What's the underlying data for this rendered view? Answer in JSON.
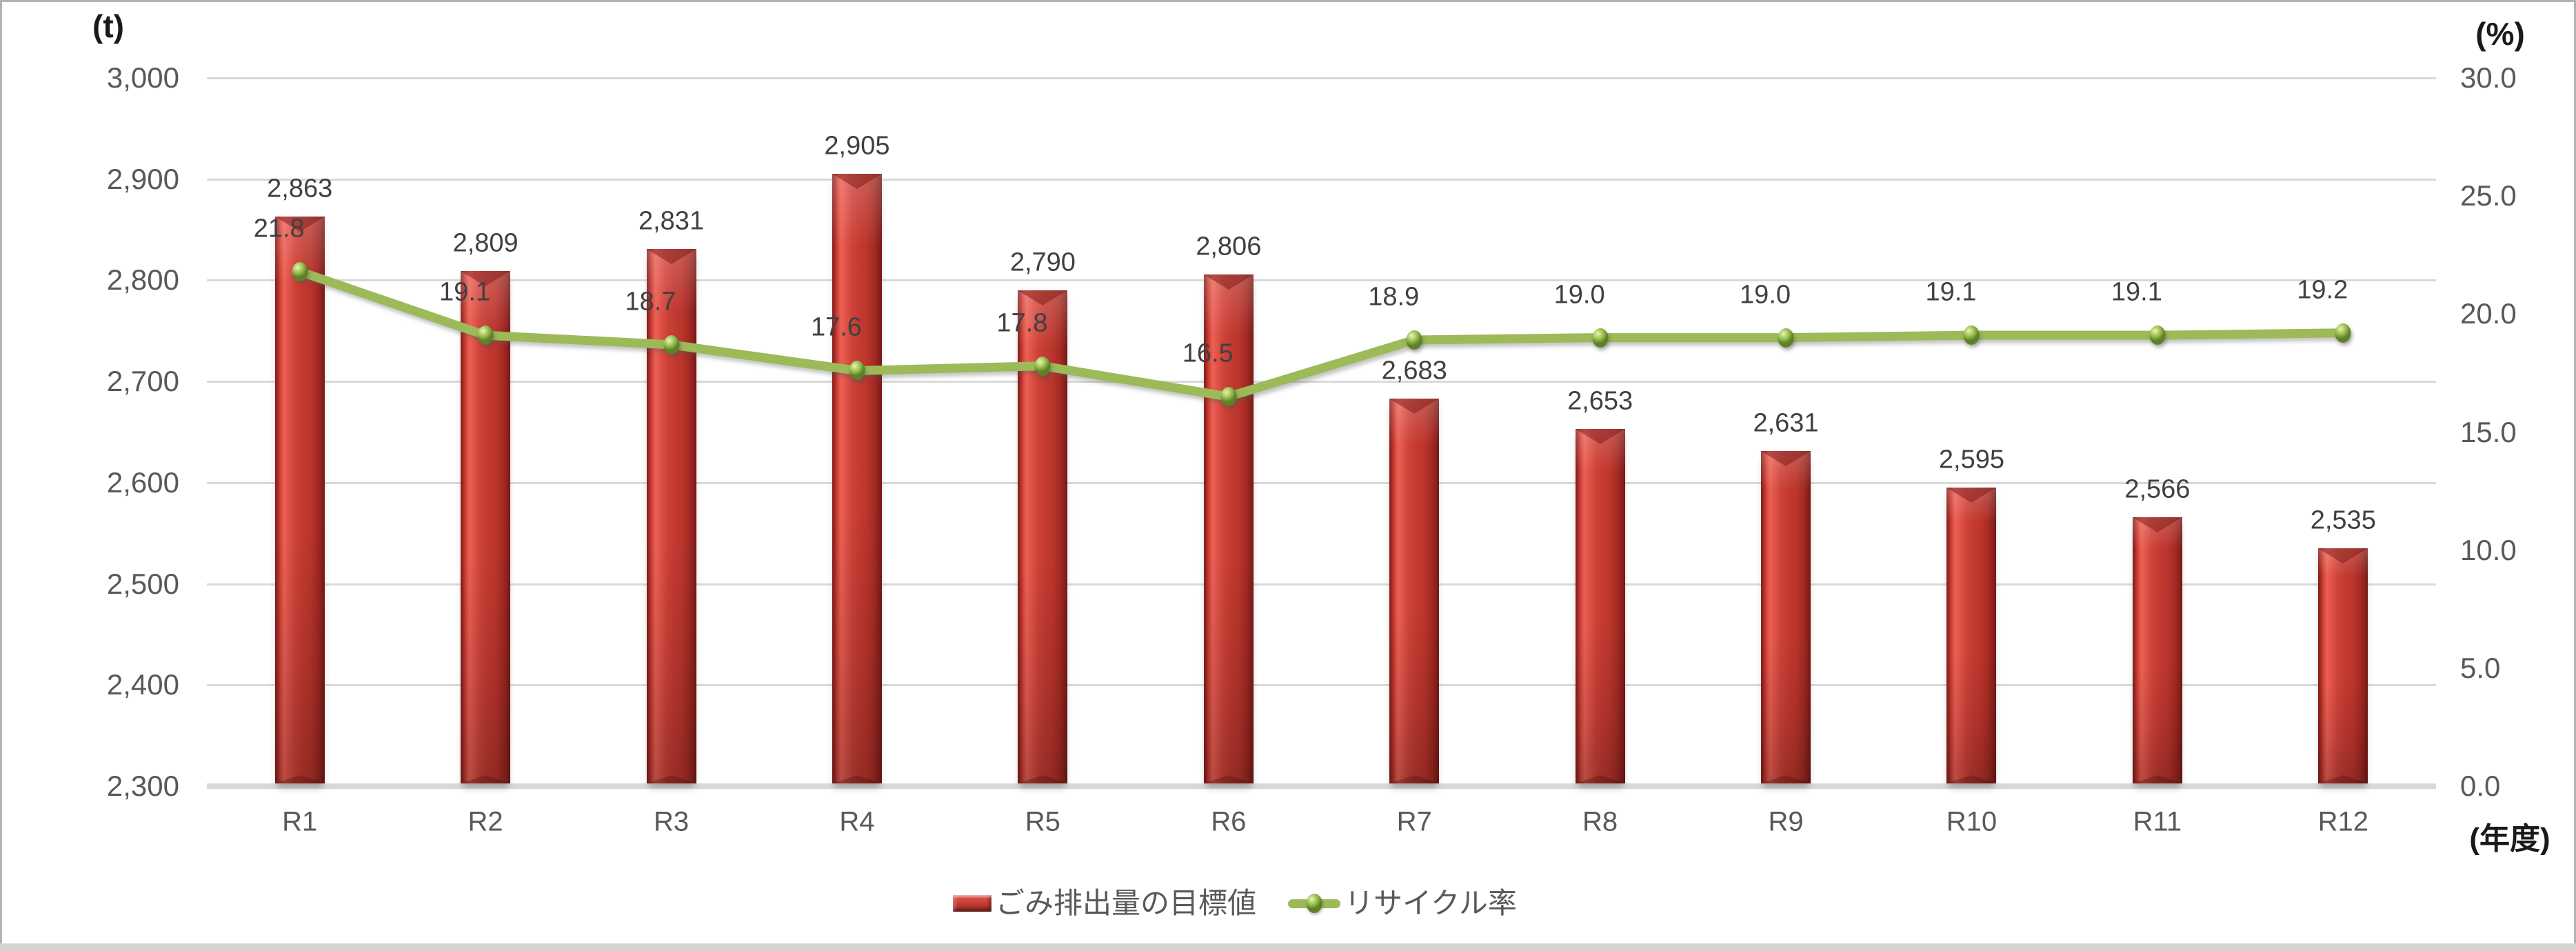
{
  "units": {
    "left_axis": "(t)",
    "right_axis": "(%)",
    "x_axis": "(年度)"
  },
  "legend": {
    "items": [
      {
        "label": "ごみ排出量の目標値",
        "type": "bar",
        "color": "#C0392B"
      },
      {
        "label": "リサイクル率",
        "type": "line",
        "color": "#9CBA57"
      }
    ]
  },
  "chart_data": {
    "type": "bar+line combo",
    "categories": [
      "R1",
      "R2",
      "R3",
      "R4",
      "R5",
      "R6",
      "R7",
      "R8",
      "R9",
      "R10",
      "R11",
      "R12"
    ],
    "series": [
      {
        "name": "ごみ排出量の目標値",
        "type": "bar",
        "axis": "left",
        "unit": "t",
        "values": [
          2863,
          2809,
          2831,
          2905,
          2790,
          2806,
          2683,
          2653,
          2631,
          2595,
          2566,
          2535
        ],
        "labels": [
          "2,863",
          "2,809",
          "2,831",
          "2,905",
          "2,790",
          "2,806",
          "2,683",
          "2,653",
          "2,631",
          "2,595",
          "2,566",
          "2,535"
        ],
        "color": "#C0392B"
      },
      {
        "name": "リサイクル率",
        "type": "line",
        "axis": "right",
        "unit": "%",
        "values": [
          21.8,
          19.1,
          18.7,
          17.6,
          17.8,
          16.5,
          18.9,
          19.0,
          19.0,
          19.1,
          19.1,
          19.2
        ],
        "labels": [
          "21.8",
          "19.1",
          "18.7",
          "17.6",
          "17.8",
          "16.5",
          "18.9",
          "19.0",
          "19.0",
          "19.1",
          "19.1",
          "19.2"
        ],
        "color": "#9CBA57"
      }
    ],
    "left_axis": {
      "title": "(t)",
      "min": 2300,
      "max": 3000,
      "tick_values": [
        2300,
        2400,
        2500,
        2600,
        2700,
        2800,
        2900,
        3000
      ],
      "tick_labels": [
        "2,300",
        "2,400",
        "2,500",
        "2,600",
        "2,700",
        "2,800",
        "2,900",
        "3,000"
      ]
    },
    "right_axis": {
      "title": "(%)",
      "min": 0,
      "max": 30,
      "tick_values": [
        0,
        5,
        10,
        15,
        20,
        25,
        30
      ],
      "tick_labels": [
        "0.0",
        "5.0",
        "10.0",
        "15.0",
        "20.0",
        "25.0",
        "30.0"
      ]
    },
    "x_axis_title": "(年度)",
    "grid": true,
    "legend_position": "bottom"
  },
  "colors": {
    "bar_main": "#C0392B",
    "bar_highlight": "#EC6054",
    "bar_dark": "#7E1D18",
    "line": "#9CBA57",
    "marker": "#9DC153",
    "gridline": "#D9D9D9",
    "axis_band": "#D9D9D9",
    "tick_text": "#595959",
    "data_label_text": "#404040",
    "unit_text": "#1A1A1A",
    "border": "#B3B3B3",
    "bottom_strip": "#D3D3D3"
  }
}
